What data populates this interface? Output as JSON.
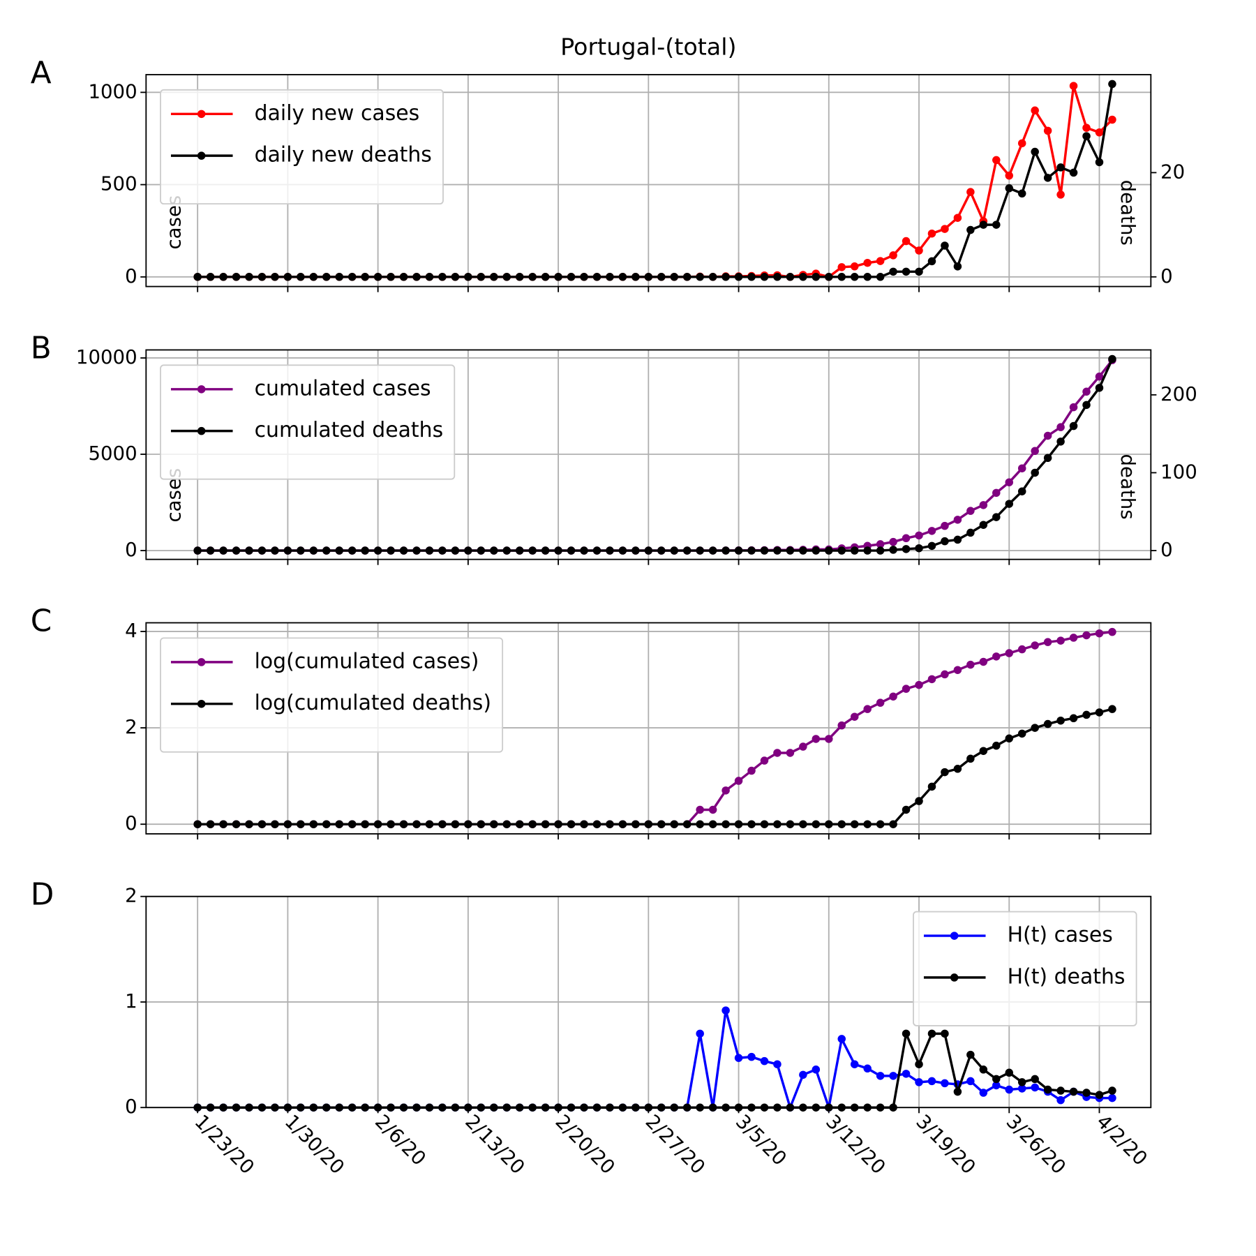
{
  "chart_data": [
    {
      "type": "line",
      "panel_label": "A",
      "title": "Portugal-(total)",
      "ylabel": "cases",
      "y2label": "deaths",
      "x": [
        "1/23/20",
        "1/24/20",
        "1/25/20",
        "1/26/20",
        "1/27/20",
        "1/28/20",
        "1/29/20",
        "1/30/20",
        "1/31/20",
        "2/1/20",
        "2/2/20",
        "2/3/20",
        "2/4/20",
        "2/5/20",
        "2/6/20",
        "2/7/20",
        "2/8/20",
        "2/9/20",
        "2/10/20",
        "2/11/20",
        "2/12/20",
        "2/13/20",
        "2/14/20",
        "2/15/20",
        "2/16/20",
        "2/17/20",
        "2/18/20",
        "2/19/20",
        "2/20/20",
        "2/21/20",
        "2/22/20",
        "2/23/20",
        "2/24/20",
        "2/25/20",
        "2/26/20",
        "2/27/20",
        "2/28/20",
        "2/29/20",
        "3/1/20",
        "3/2/20",
        "3/3/20",
        "3/4/20",
        "3/5/20",
        "3/6/20",
        "3/7/20",
        "3/8/20",
        "3/9/20",
        "3/10/20",
        "3/11/20",
        "3/12/20",
        "3/13/20",
        "3/14/20",
        "3/15/20",
        "3/16/20",
        "3/17/20",
        "3/18/20",
        "3/19/20",
        "3/20/20",
        "3/21/20",
        "3/22/20",
        "3/23/20",
        "3/24/20",
        "3/25/20",
        "3/26/20",
        "3/27/20",
        "3/28/20",
        "3/29/20",
        "3/30/20",
        "3/31/20",
        "4/1/20",
        "4/2/20",
        "4/3/20"
      ],
      "series": [
        {
          "name": "daily new cases",
          "color": "#ff0000",
          "values": [
            0,
            0,
            0,
            0,
            0,
            0,
            0,
            0,
            0,
            0,
            0,
            0,
            0,
            0,
            0,
            0,
            0,
            0,
            0,
            0,
            0,
            0,
            0,
            0,
            0,
            0,
            0,
            0,
            0,
            0,
            0,
            0,
            0,
            0,
            0,
            0,
            0,
            0,
            0,
            2,
            0,
            3,
            3,
            5,
            8,
            9,
            0,
            11,
            18,
            0,
            53,
            57,
            76,
            86,
            117,
            194,
            143,
            235,
            260,
            320,
            460,
            302,
            633,
            549,
            724,
            902,
            792,
            446,
            1035,
            808,
            783,
            852
          ]
        },
        {
          "name": "daily new deaths",
          "color": "#000000",
          "axis": "y2",
          "values": [
            0,
            0,
            0,
            0,
            0,
            0,
            0,
            0,
            0,
            0,
            0,
            0,
            0,
            0,
            0,
            0,
            0,
            0,
            0,
            0,
            0,
            0,
            0,
            0,
            0,
            0,
            0,
            0,
            0,
            0,
            0,
            0,
            0,
            0,
            0,
            0,
            0,
            0,
            0,
            0,
            0,
            0,
            0,
            0,
            0,
            0,
            0,
            0,
            0,
            0,
            0,
            0,
            0,
            0,
            1,
            1,
            1,
            3,
            6,
            2,
            9,
            10,
            10,
            17,
            16,
            24,
            19,
            21,
            20,
            27,
            22,
            37
          ]
        }
      ],
      "xlim": [
        "1/19/20",
        "4/6/20"
      ],
      "xticks": [
        "1/23/20",
        "1/30/20",
        "2/6/20",
        "2/13/20",
        "2/20/20",
        "2/27/20",
        "3/5/20",
        "3/12/20",
        "3/19/20",
        "3/26/20",
        "4/2/20"
      ],
      "ylim": [
        -52,
        1096
      ],
      "yticks": [
        0,
        500,
        1000
      ],
      "y2lim": [
        -1.85,
        38.8
      ],
      "y2ticks": [
        0,
        20
      ],
      "grid": true,
      "legend": "upper left"
    },
    {
      "type": "line",
      "panel_label": "B",
      "ylabel": "cases",
      "y2label": "deaths",
      "x": [
        "1/23/20",
        "1/24/20",
        "1/25/20",
        "1/26/20",
        "1/27/20",
        "1/28/20",
        "1/29/20",
        "1/30/20",
        "1/31/20",
        "2/1/20",
        "2/2/20",
        "2/3/20",
        "2/4/20",
        "2/5/20",
        "2/6/20",
        "2/7/20",
        "2/8/20",
        "2/9/20",
        "2/10/20",
        "2/11/20",
        "2/12/20",
        "2/13/20",
        "2/14/20",
        "2/15/20",
        "2/16/20",
        "2/17/20",
        "2/18/20",
        "2/19/20",
        "2/20/20",
        "2/21/20",
        "2/22/20",
        "2/23/20",
        "2/24/20",
        "2/25/20",
        "2/26/20",
        "2/27/20",
        "2/28/20",
        "2/29/20",
        "3/1/20",
        "3/2/20",
        "3/3/20",
        "3/4/20",
        "3/5/20",
        "3/6/20",
        "3/7/20",
        "3/8/20",
        "3/9/20",
        "3/10/20",
        "3/11/20",
        "3/12/20",
        "3/13/20",
        "3/14/20",
        "3/15/20",
        "3/16/20",
        "3/17/20",
        "3/18/20",
        "3/19/20",
        "3/20/20",
        "3/21/20",
        "3/22/20",
        "3/23/20",
        "3/24/20",
        "3/25/20",
        "3/26/20",
        "3/27/20",
        "3/28/20",
        "3/29/20",
        "3/30/20",
        "3/31/20",
        "4/1/20",
        "4/2/20",
        "4/3/20"
      ],
      "series": [
        {
          "name": "cumulated cases",
          "color": "#800080",
          "values": [
            0,
            0,
            0,
            0,
            0,
            0,
            0,
            0,
            0,
            0,
            0,
            0,
            0,
            0,
            0,
            0,
            0,
            0,
            0,
            0,
            0,
            0,
            0,
            0,
            0,
            0,
            0,
            0,
            0,
            0,
            0,
            0,
            0,
            0,
            0,
            0,
            0,
            0,
            0,
            2,
            2,
            5,
            8,
            13,
            21,
            30,
            30,
            41,
            59,
            59,
            112,
            169,
            245,
            331,
            448,
            642,
            785,
            1020,
            1280,
            1600,
            2060,
            2362,
            2995,
            3544,
            4268,
            5170,
            5962,
            6408,
            7443,
            8251,
            9034,
            9886
          ]
        },
        {
          "name": "cumulated deaths",
          "color": "#000000",
          "axis": "y2",
          "values": [
            0,
            0,
            0,
            0,
            0,
            0,
            0,
            0,
            0,
            0,
            0,
            0,
            0,
            0,
            0,
            0,
            0,
            0,
            0,
            0,
            0,
            0,
            0,
            0,
            0,
            0,
            0,
            0,
            0,
            0,
            0,
            0,
            0,
            0,
            0,
            0,
            0,
            0,
            0,
            0,
            0,
            0,
            0,
            0,
            0,
            0,
            0,
            0,
            0,
            0,
            0,
            0,
            0,
            0,
            1,
            2,
            3,
            6,
            12,
            14,
            23,
            33,
            43,
            60,
            76,
            100,
            119,
            140,
            160,
            187,
            209,
            246
          ]
        }
      ],
      "xlim": [
        "1/19/20",
        "4/6/20"
      ],
      "xticks": [
        "1/23/20",
        "1/30/20",
        "2/6/20",
        "2/13/20",
        "2/20/20",
        "2/27/20",
        "3/5/20",
        "3/12/20",
        "3/19/20",
        "3/26/20",
        "4/2/20"
      ],
      "ylim": [
        -458,
        10417
      ],
      "yticks": [
        0,
        5000,
        10000
      ],
      "y2lim": [
        -11.3,
        257.7
      ],
      "y2ticks": [
        0,
        100,
        200
      ],
      "grid": true,
      "legend": "upper left"
    },
    {
      "type": "line",
      "panel_label": "C",
      "x": [
        "1/23/20",
        "1/24/20",
        "1/25/20",
        "1/26/20",
        "1/27/20",
        "1/28/20",
        "1/29/20",
        "1/30/20",
        "1/31/20",
        "2/1/20",
        "2/2/20",
        "2/3/20",
        "2/4/20",
        "2/5/20",
        "2/6/20",
        "2/7/20",
        "2/8/20",
        "2/9/20",
        "2/10/20",
        "2/11/20",
        "2/12/20",
        "2/13/20",
        "2/14/20",
        "2/15/20",
        "2/16/20",
        "2/17/20",
        "2/18/20",
        "2/19/20",
        "2/20/20",
        "2/21/20",
        "2/22/20",
        "2/23/20",
        "2/24/20",
        "2/25/20",
        "2/26/20",
        "2/27/20",
        "2/28/20",
        "2/29/20",
        "3/1/20",
        "3/2/20",
        "3/3/20",
        "3/4/20",
        "3/5/20",
        "3/6/20",
        "3/7/20",
        "3/8/20",
        "3/9/20",
        "3/10/20",
        "3/11/20",
        "3/12/20",
        "3/13/20",
        "3/14/20",
        "3/15/20",
        "3/16/20",
        "3/17/20",
        "3/18/20",
        "3/19/20",
        "3/20/20",
        "3/21/20",
        "3/22/20",
        "3/23/20",
        "3/24/20",
        "3/25/20",
        "3/26/20",
        "3/27/20",
        "3/28/20",
        "3/29/20",
        "3/30/20",
        "3/31/20",
        "4/1/20",
        "4/2/20",
        "4/3/20"
      ],
      "series": [
        {
          "name": "log(cumulated cases)",
          "color": "#800080",
          "values": [
            0,
            0,
            0,
            0,
            0,
            0,
            0,
            0,
            0,
            0,
            0,
            0,
            0,
            0,
            0,
            0,
            0,
            0,
            0,
            0,
            0,
            0,
            0,
            0,
            0,
            0,
            0,
            0,
            0,
            0,
            0,
            0,
            0,
            0,
            0,
            0,
            0,
            0,
            0,
            0.3,
            0.3,
            0.7,
            0.9,
            1.11,
            1.32,
            1.48,
            1.48,
            1.61,
            1.77,
            1.77,
            2.05,
            2.23,
            2.39,
            2.52,
            2.65,
            2.81,
            2.89,
            3.01,
            3.11,
            3.2,
            3.31,
            3.37,
            3.48,
            3.55,
            3.63,
            3.71,
            3.78,
            3.81,
            3.87,
            3.92,
            3.96,
            3.99
          ]
        },
        {
          "name": "log(cumulated deaths)",
          "color": "#000000",
          "values": [
            0,
            0,
            0,
            0,
            0,
            0,
            0,
            0,
            0,
            0,
            0,
            0,
            0,
            0,
            0,
            0,
            0,
            0,
            0,
            0,
            0,
            0,
            0,
            0,
            0,
            0,
            0,
            0,
            0,
            0,
            0,
            0,
            0,
            0,
            0,
            0,
            0,
            0,
            0,
            0,
            0,
            0,
            0,
            0,
            0,
            0,
            0,
            0,
            0,
            0,
            0,
            0,
            0,
            0,
            0,
            0.3,
            0.48,
            0.78,
            1.08,
            1.15,
            1.36,
            1.52,
            1.63,
            1.78,
            1.88,
            2.0,
            2.08,
            2.15,
            2.2,
            2.27,
            2.32,
            2.39
          ]
        }
      ],
      "xlim": [
        "1/19/20",
        "4/6/20"
      ],
      "xticks": [
        "1/23/20",
        "1/30/20",
        "2/6/20",
        "2/13/20",
        "2/20/20",
        "2/27/20",
        "3/5/20",
        "3/12/20",
        "3/19/20",
        "3/26/20",
        "4/2/20"
      ],
      "ylim": [
        -0.2,
        4.18
      ],
      "yticks": [
        0,
        2,
        4
      ],
      "grid": true,
      "legend": "upper left"
    },
    {
      "type": "line",
      "panel_label": "D",
      "x": [
        "1/23/20",
        "1/24/20",
        "1/25/20",
        "1/26/20",
        "1/27/20",
        "1/28/20",
        "1/29/20",
        "1/30/20",
        "1/31/20",
        "2/1/20",
        "2/2/20",
        "2/3/20",
        "2/4/20",
        "2/5/20",
        "2/6/20",
        "2/7/20",
        "2/8/20",
        "2/9/20",
        "2/10/20",
        "2/11/20",
        "2/12/20",
        "2/13/20",
        "2/14/20",
        "2/15/20",
        "2/16/20",
        "2/17/20",
        "2/18/20",
        "2/19/20",
        "2/20/20",
        "2/21/20",
        "2/22/20",
        "2/23/20",
        "2/24/20",
        "2/25/20",
        "2/26/20",
        "2/27/20",
        "2/28/20",
        "2/29/20",
        "3/1/20",
        "3/2/20",
        "3/3/20",
        "3/4/20",
        "3/5/20",
        "3/6/20",
        "3/7/20",
        "3/8/20",
        "3/9/20",
        "3/10/20",
        "3/11/20",
        "3/12/20",
        "3/13/20",
        "3/14/20",
        "3/15/20",
        "3/16/20",
        "3/17/20",
        "3/18/20",
        "3/19/20",
        "3/20/20",
        "3/21/20",
        "3/22/20",
        "3/23/20",
        "3/24/20",
        "3/25/20",
        "3/26/20",
        "3/27/20",
        "3/28/20",
        "3/29/20",
        "3/30/20",
        "3/31/20",
        "4/1/20",
        "4/2/20",
        "4/3/20"
      ],
      "series": [
        {
          "name": "H(t) cases",
          "color": "#0000ff",
          "values": [
            0,
            0,
            0,
            0,
            0,
            0,
            0,
            0,
            0,
            0,
            0,
            0,
            0,
            0,
            0,
            0,
            0,
            0,
            0,
            0,
            0,
            0,
            0,
            0,
            0,
            0,
            0,
            0,
            0,
            0,
            0,
            0,
            0,
            0,
            0,
            0,
            0,
            0,
            0,
            0.7,
            0,
            0.92,
            0.47,
            0.48,
            0.44,
            0.41,
            0,
            0.31,
            0.36,
            0,
            0.65,
            0.41,
            0.37,
            0.3,
            0.3,
            0.32,
            0.24,
            0.25,
            0.23,
            0.22,
            0.25,
            0.14,
            0.21,
            0.17,
            0.18,
            0.19,
            0.15,
            0.07,
            0.15,
            0.1,
            0.09,
            0.09
          ]
        },
        {
          "name": "H(t) deaths",
          "color": "#000000",
          "values": [
            0,
            0,
            0,
            0,
            0,
            0,
            0,
            0,
            0,
            0,
            0,
            0,
            0,
            0,
            0,
            0,
            0,
            0,
            0,
            0,
            0,
            0,
            0,
            0,
            0,
            0,
            0,
            0,
            0,
            0,
            0,
            0,
            0,
            0,
            0,
            0,
            0,
            0,
            0,
            0,
            0,
            0,
            0,
            0,
            0,
            0,
            0,
            0,
            0,
            0,
            0,
            0,
            0,
            0,
            0,
            0.7,
            0.41,
            0.7,
            0.7,
            0.15,
            0.5,
            0.36,
            0.27,
            0.33,
            0.24,
            0.27,
            0.17,
            0.16,
            0.15,
            0.14,
            0.12,
            0.16
          ]
        }
      ],
      "xlim": [
        "1/19/20",
        "4/6/20"
      ],
      "xticks": [
        "1/23/20",
        "1/30/20",
        "2/6/20",
        "2/13/20",
        "2/20/20",
        "2/27/20",
        "3/5/20",
        "3/12/20",
        "3/19/20",
        "3/26/20",
        "4/2/20"
      ],
      "ylim": [
        0,
        2
      ],
      "yticks": [
        0,
        1,
        2
      ],
      "grid": true,
      "legend": "upper right"
    }
  ]
}
